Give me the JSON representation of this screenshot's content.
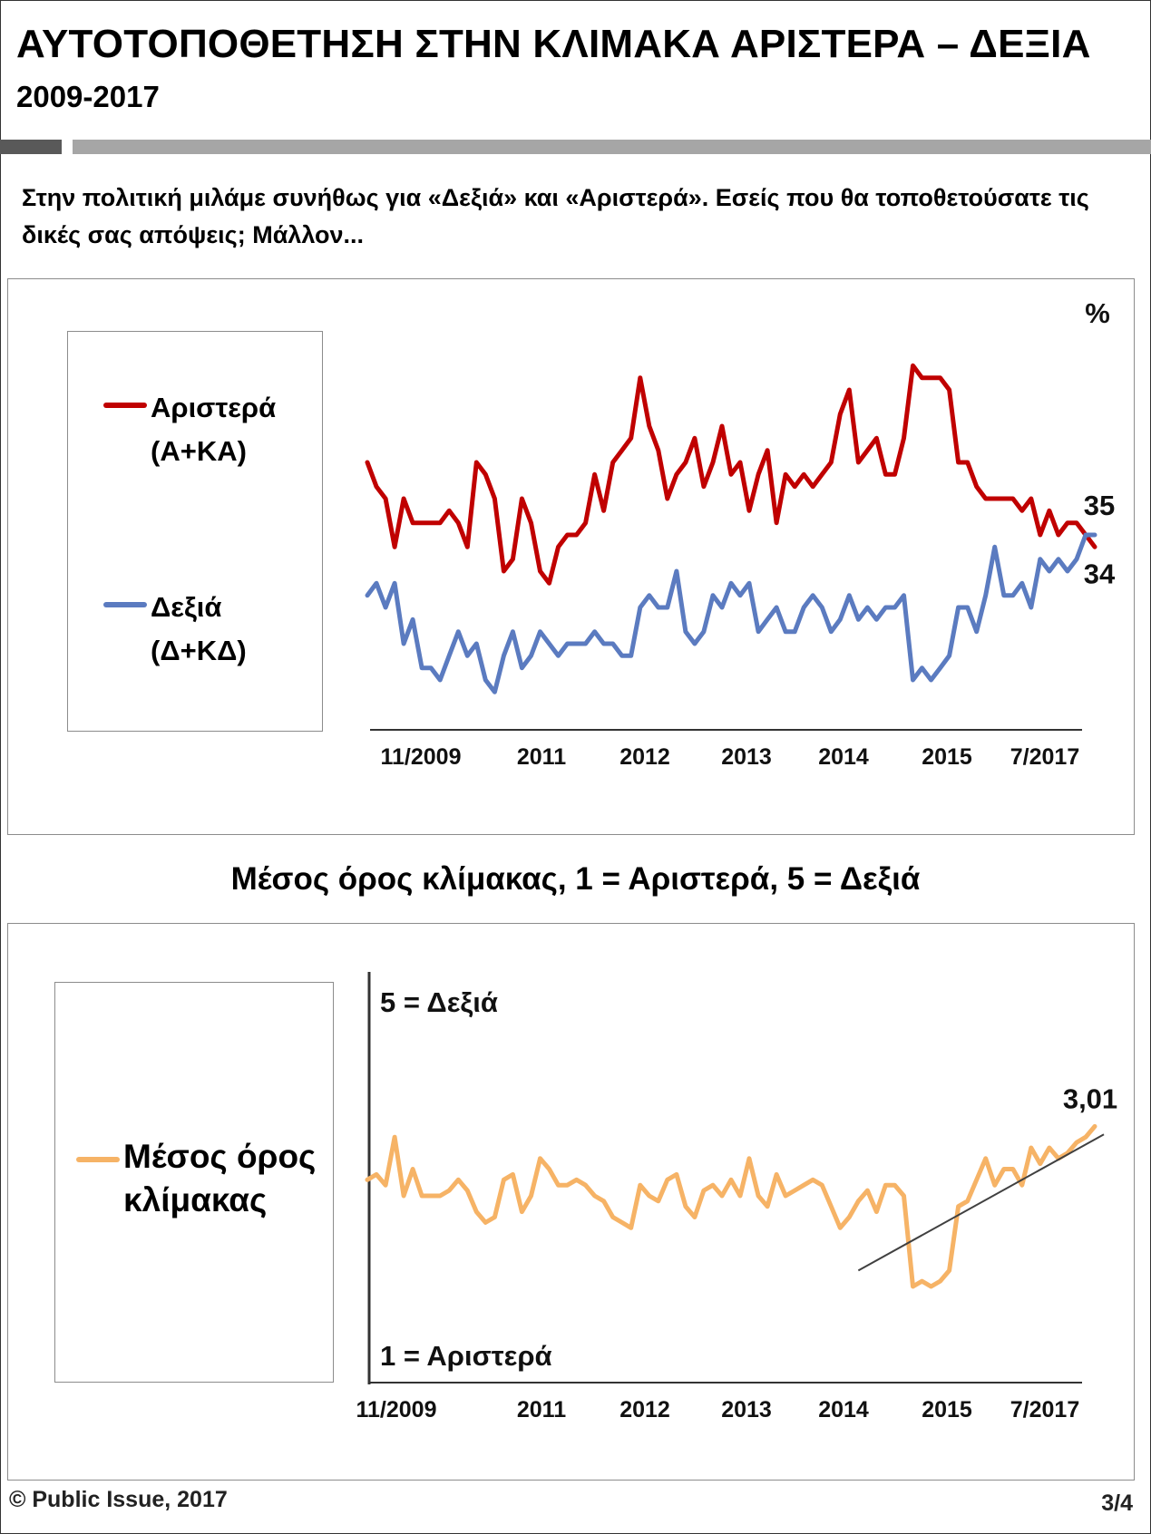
{
  "header": {
    "title": "ΑΥΤΟΤΟΠΟΘΕΤΗΣΗ ΣΤΗΝ ΚΛΙΜΑΚΑ ΑΡΙΣΤΕΡΑ – ΔΕΞΙΑ",
    "subtitle": "2009-2017"
  },
  "question": "Στην πολιτική μιλάμε συνήθως για «Δεξιά» και «Αριστερά». Εσείς που θα τοποθετούσατε τις δικές σας απόψεις; Μάλλον...",
  "chart2_title": "Μέσος όρος κλίμακας, 1 = Αριστερά, 5 = Δεξιά",
  "footer": {
    "copyright": "© Public Issue, 2017",
    "page": "3/4"
  },
  "chart_data": [
    {
      "type": "line",
      "unit_label": "%",
      "x_tick_labels": [
        "11/2009",
        "2011",
        "2012",
        "2013",
        "2014",
        "2015",
        "7/2017"
      ],
      "ylim": [
        20,
        50
      ],
      "grid": false,
      "legend_position": "left",
      "end_labels": {
        "left": "34",
        "right": "35"
      },
      "series": [
        {
          "name": "Αριστερά\n(Α+ΚΑ)",
          "color": "#c00000",
          "values": [
            41,
            39,
            38,
            34,
            38,
            36,
            36,
            36,
            36,
            37,
            36,
            34,
            41,
            40,
            38,
            32,
            33,
            38,
            36,
            32,
            31,
            34,
            35,
            35,
            36,
            40,
            37,
            41,
            42,
            43,
            48,
            44,
            42,
            38,
            40,
            41,
            43,
            39,
            41,
            44,
            40,
            41,
            37,
            40,
            42,
            36,
            40,
            39,
            40,
            39,
            40,
            41,
            45,
            47,
            41,
            42,
            43,
            40,
            40,
            43,
            49,
            48,
            48,
            48,
            47,
            41,
            41,
            39,
            38,
            38,
            38,
            38,
            37,
            38,
            35,
            37,
            35,
            36,
            36,
            35,
            34
          ]
        },
        {
          "name": "Δεξιά\n(Δ+ΚΔ)",
          "color": "#5b7bc0",
          "values": [
            30,
            31,
            29,
            31,
            26,
            28,
            24,
            24,
            23,
            25,
            27,
            25,
            26,
            23,
            22,
            25,
            27,
            24,
            25,
            27,
            26,
            25,
            26,
            26,
            26,
            27,
            26,
            26,
            25,
            25,
            29,
            30,
            29,
            29,
            32,
            27,
            26,
            27,
            30,
            29,
            31,
            30,
            31,
            27,
            28,
            29,
            27,
            27,
            29,
            30,
            29,
            27,
            28,
            30,
            28,
            29,
            28,
            29,
            29,
            30,
            23,
            24,
            23,
            24,
            25,
            29,
            29,
            27,
            30,
            34,
            30,
            30,
            31,
            29,
            33,
            32,
            33,
            32,
            33,
            35,
            35
          ]
        }
      ]
    },
    {
      "type": "line",
      "y_axis_labels": {
        "top": "5 = Δεξιά",
        "bottom": "1 = Αριστερά"
      },
      "x_tick_labels": [
        "11/2009",
        "2011",
        "2012",
        "2013",
        "2014",
        "2015",
        "7/2017"
      ],
      "ylim": [
        2.62,
        3.06
      ],
      "grid": false,
      "legend_position": "left",
      "end_label": "3,01",
      "trendline": {
        "color": "#404040",
        "from": {
          "index": 54,
          "value": 2.74
        },
        "to": {
          "index": 81,
          "value": 2.995
        }
      },
      "series": [
        {
          "name": "Μέσος όρος\nκλίμακας",
          "color": "#f6b366",
          "values": [
            2.91,
            2.92,
            2.9,
            2.99,
            2.88,
            2.93,
            2.88,
            2.88,
            2.88,
            2.89,
            2.91,
            2.89,
            2.85,
            2.83,
            2.84,
            2.91,
            2.92,
            2.85,
            2.88,
            2.95,
            2.93,
            2.9,
            2.9,
            2.91,
            2.9,
            2.88,
            2.87,
            2.84,
            2.83,
            2.82,
            2.9,
            2.88,
            2.87,
            2.91,
            2.92,
            2.86,
            2.84,
            2.89,
            2.9,
            2.88,
            2.91,
            2.88,
            2.95,
            2.88,
            2.86,
            2.92,
            2.88,
            2.89,
            2.9,
            2.91,
            2.9,
            2.86,
            2.82,
            2.84,
            2.87,
            2.89,
            2.85,
            2.9,
            2.9,
            2.88,
            2.71,
            2.72,
            2.71,
            2.72,
            2.74,
            2.86,
            2.87,
            2.91,
            2.95,
            2.9,
            2.93,
            2.93,
            2.9,
            2.97,
            2.94,
            2.97,
            2.95,
            2.96,
            2.98,
            2.99,
            3.01
          ]
        }
      ]
    }
  ]
}
